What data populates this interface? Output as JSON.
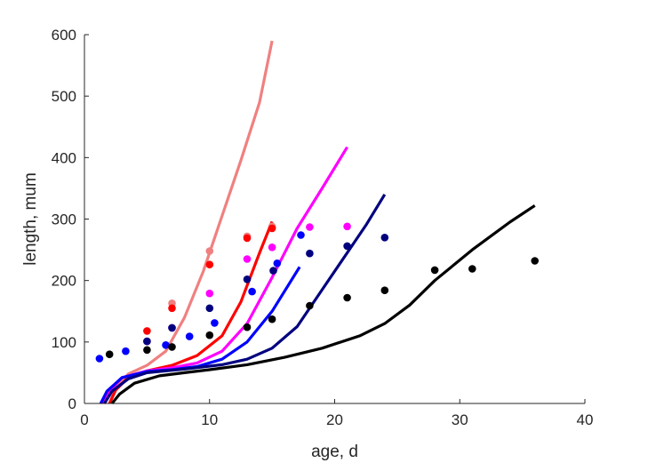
{
  "chart_data": {
    "type": "scatter",
    "title": "",
    "xlabel": "age, d",
    "ylabel": "length, mum",
    "xlim": [
      0,
      40
    ],
    "ylim": [
      0,
      600
    ],
    "xticks": [
      "0",
      "10",
      "20",
      "30",
      "40"
    ],
    "yticks": [
      "0",
      "100",
      "200",
      "300",
      "400",
      "500",
      "600"
    ],
    "grid": false,
    "legend": "none",
    "series": [
      {
        "color": "#f08080",
        "points": [
          [
            7,
            163
          ],
          [
            10,
            248
          ],
          [
            13,
            272
          ],
          [
            15,
            288
          ]
        ],
        "curve": [
          [
            2.0,
            0
          ],
          [
            2.5,
            25
          ],
          [
            3.5,
            48
          ],
          [
            5,
            62
          ],
          [
            6.5,
            85
          ],
          [
            8,
            140
          ],
          [
            9.5,
            215
          ],
          [
            11,
            305
          ],
          [
            12.5,
            395
          ],
          [
            14,
            490
          ],
          [
            15,
            590
          ]
        ]
      },
      {
        "color": "#ff0000",
        "points": [
          [
            5,
            118
          ],
          [
            7,
            155
          ],
          [
            10,
            226
          ],
          [
            13,
            269
          ],
          [
            15,
            285
          ]
        ],
        "curve": [
          [
            2.0,
            0
          ],
          [
            2.5,
            22
          ],
          [
            3.5,
            42
          ],
          [
            5,
            53
          ],
          [
            7,
            62
          ],
          [
            9,
            78
          ],
          [
            11,
            110
          ],
          [
            12.5,
            165
          ],
          [
            14,
            245
          ],
          [
            15,
            296
          ]
        ]
      },
      {
        "color": "#ff00ff",
        "points": [
          [
            5,
            101
          ],
          [
            7,
            123
          ],
          [
            10,
            179
          ],
          [
            13,
            235
          ],
          [
            15,
            254
          ],
          [
            18,
            287
          ],
          [
            21,
            288
          ]
        ],
        "curve": [
          [
            1.5,
            0
          ],
          [
            2.0,
            20
          ],
          [
            3,
            42
          ],
          [
            5,
            53
          ],
          [
            7,
            58
          ],
          [
            9,
            66
          ],
          [
            11,
            85
          ],
          [
            13,
            130
          ],
          [
            15,
            205
          ],
          [
            17,
            285
          ],
          [
            19,
            350
          ],
          [
            21,
            417
          ]
        ]
      },
      {
        "color": "#0000ff",
        "points": [
          [
            1.2,
            73
          ],
          [
            3.3,
            85
          ],
          [
            6.5,
            95
          ],
          [
            8.4,
            109
          ],
          [
            10.4,
            131
          ],
          [
            13.4,
            182
          ],
          [
            15.4,
            228
          ],
          [
            17.3,
            274
          ]
        ],
        "curve": [
          [
            1.3,
            0
          ],
          [
            1.8,
            20
          ],
          [
            3,
            42
          ],
          [
            5,
            52
          ],
          [
            7,
            55
          ],
          [
            9,
            60
          ],
          [
            11,
            72
          ],
          [
            13,
            100
          ],
          [
            15,
            150
          ],
          [
            17.2,
            222
          ]
        ]
      },
      {
        "color": "#00007f",
        "points": [
          [
            5,
            101
          ],
          [
            7,
            123
          ],
          [
            10,
            155
          ],
          [
            13,
            202
          ],
          [
            15.1,
            216
          ],
          [
            18,
            244
          ],
          [
            21,
            256
          ],
          [
            24,
            270
          ]
        ],
        "curve": [
          [
            1.6,
            0
          ],
          [
            2.2,
            20
          ],
          [
            3.5,
            40
          ],
          [
            5,
            50
          ],
          [
            8,
            56
          ],
          [
            11,
            63
          ],
          [
            13,
            72
          ],
          [
            15,
            90
          ],
          [
            17,
            125
          ],
          [
            19,
            185
          ],
          [
            21,
            245
          ],
          [
            22.5,
            290
          ],
          [
            24,
            340
          ]
        ]
      },
      {
        "color": "#000000",
        "points": [
          [
            2,
            80
          ],
          [
            5,
            87
          ],
          [
            7,
            92
          ],
          [
            10,
            111
          ],
          [
            13,
            124
          ],
          [
            15,
            137
          ],
          [
            18,
            159
          ],
          [
            21,
            172
          ],
          [
            24,
            184
          ],
          [
            28,
            217
          ],
          [
            31,
            219
          ],
          [
            36,
            232
          ]
        ],
        "curve": [
          [
            2.2,
            0
          ],
          [
            2.8,
            15
          ],
          [
            4,
            33
          ],
          [
            6,
            45
          ],
          [
            8,
            50
          ],
          [
            10,
            55
          ],
          [
            13,
            63
          ],
          [
            16,
            75
          ],
          [
            19,
            90
          ],
          [
            22,
            110
          ],
          [
            24,
            130
          ],
          [
            26,
            160
          ],
          [
            28,
            200
          ],
          [
            31,
            250
          ],
          [
            34,
            295
          ],
          [
            36,
            322
          ]
        ]
      }
    ]
  }
}
